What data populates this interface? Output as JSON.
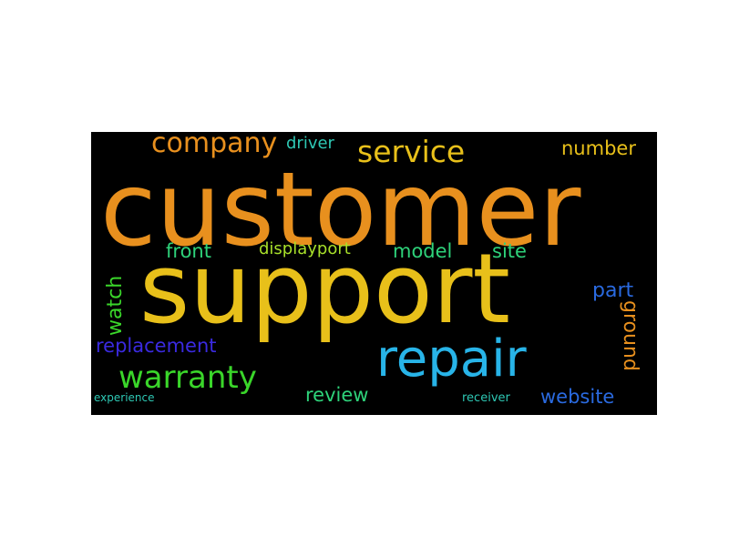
{
  "word_cloud": {
    "background": "#000000",
    "words": [
      {
        "text": "customer",
        "color": "#e8901e"
      },
      {
        "text": "support",
        "color": "#e8c01a"
      },
      {
        "text": "repair",
        "color": "#28b4e8"
      },
      {
        "text": "warranty",
        "color": "#3ad62a"
      },
      {
        "text": "service",
        "color": "#e8c01a"
      },
      {
        "text": "company",
        "color": "#e8901e"
      },
      {
        "text": "driver",
        "color": "#2ec8b4"
      },
      {
        "text": "number",
        "color": "#e8c01a"
      },
      {
        "text": "front",
        "color": "#2ed27a"
      },
      {
        "text": "displayport",
        "color": "#a8e02a"
      },
      {
        "text": "model",
        "color": "#2ed27a"
      },
      {
        "text": "site",
        "color": "#2ed27a"
      },
      {
        "text": "part",
        "color": "#2a6ae0"
      },
      {
        "text": "watch",
        "color": "#3ad62a"
      },
      {
        "text": "ground",
        "color": "#e8901e"
      },
      {
        "text": "replacement",
        "color": "#3a2ae0"
      },
      {
        "text": "review",
        "color": "#2ed27a"
      },
      {
        "text": "website",
        "color": "#2a6ae0"
      },
      {
        "text": "experience",
        "color": "#2ec8b4"
      },
      {
        "text": "receiver",
        "color": "#2ec8b4"
      }
    ]
  }
}
